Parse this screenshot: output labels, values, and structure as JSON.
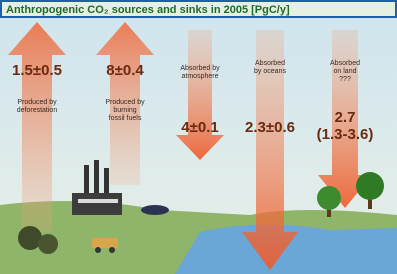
{
  "header": {
    "title": "Anthropogenic CO₂ sources and sinks in 2005 [PgC/y]"
  },
  "items": [
    {
      "value": "1.5±0.5",
      "label": [
        "Produced by",
        "deforestation"
      ]
    },
    {
      "value": "8±0.4",
      "label": [
        "Produced by",
        "burning",
        "fossil fuels"
      ]
    },
    {
      "value": "4±0.1",
      "label": [
        "Absorbed by",
        "atmosphere"
      ]
    },
    {
      "value": "2.3±0.6",
      "label": [
        "Absorbed",
        "by oceans"
      ]
    },
    {
      "value": [
        "2.7",
        "(1.3-3.6)"
      ],
      "label": [
        "Absorbed",
        "on land",
        "???"
      ]
    }
  ]
}
